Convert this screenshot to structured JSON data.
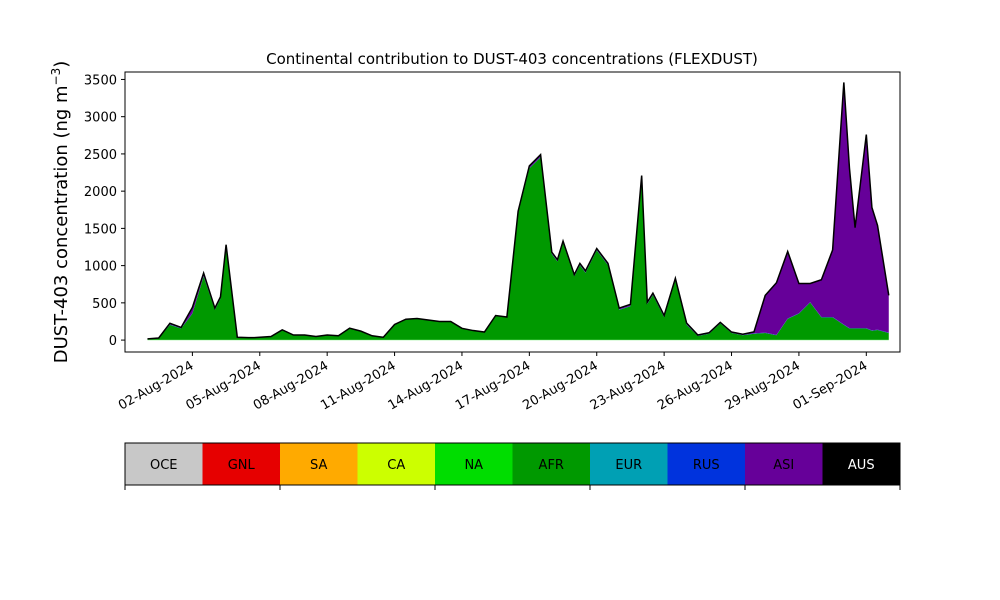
{
  "chart_data": {
    "type": "area",
    "stacked": true,
    "title": "Continental contribution to DUST-403 concentrations (FLEXDUST)",
    "ylabel_main": "DUST-403 concentration (ng m",
    "ylabel_exp": "−3",
    "ylabel_close": ")",
    "xlabel": "",
    "ylim": [
      -160,
      3600
    ],
    "yticks": [
      0,
      500,
      1000,
      1500,
      2000,
      2500,
      3000,
      3500
    ],
    "xrange": [
      "2024-07-30T00:00",
      "2024-09-02T12:00"
    ],
    "xticks": [
      "2024-08-02",
      "2024-08-05",
      "2024-08-08",
      "2024-08-11",
      "2024-08-14",
      "2024-08-17",
      "2024-08-20",
      "2024-08-23",
      "2024-08-26",
      "2024-08-29",
      "2024-09-01"
    ],
    "xtick_labels": [
      "02-Aug-2024",
      "05-Aug-2024",
      "08-Aug-2024",
      "11-Aug-2024",
      "14-Aug-2024",
      "17-Aug-2024",
      "20-Aug-2024",
      "23-Aug-2024",
      "26-Aug-2024",
      "29-Aug-2024",
      "01-Sep-2024"
    ],
    "x": [
      "2024-07-31T00:00",
      "2024-07-31T12:00",
      "2024-08-01T00:00",
      "2024-08-01T12:00",
      "2024-08-02T00:00",
      "2024-08-02T12:00",
      "2024-08-03T00:00",
      "2024-08-03T06:00",
      "2024-08-03T12:00",
      "2024-08-04T00:00",
      "2024-08-04T12:00",
      "2024-08-04T18:00",
      "2024-08-05T00:00",
      "2024-08-05T12:00",
      "2024-08-06T00:00",
      "2024-08-06T12:00",
      "2024-08-07T00:00",
      "2024-08-07T12:00",
      "2024-08-08T00:00",
      "2024-08-08T12:00",
      "2024-08-09T00:00",
      "2024-08-09T12:00",
      "2024-08-10T00:00",
      "2024-08-10T12:00",
      "2024-08-11T00:00",
      "2024-08-11T12:00",
      "2024-08-12T00:00",
      "2024-08-12T12:00",
      "2024-08-13T00:00",
      "2024-08-13T12:00",
      "2024-08-14T00:00",
      "2024-08-14T12:00",
      "2024-08-15T00:00",
      "2024-08-15T12:00",
      "2024-08-16T00:00",
      "2024-08-16T12:00",
      "2024-08-17T00:00",
      "2024-08-17T12:00",
      "2024-08-18T00:00",
      "2024-08-18T06:00",
      "2024-08-18T12:00",
      "2024-08-19T00:00",
      "2024-08-19T06:00",
      "2024-08-19T12:00",
      "2024-08-20T00:00",
      "2024-08-20T12:00",
      "2024-08-21T00:00",
      "2024-08-21T12:00",
      "2024-08-22T00:00",
      "2024-08-22T06:00",
      "2024-08-22T12:00",
      "2024-08-23T00:00",
      "2024-08-23T12:00",
      "2024-08-24T00:00",
      "2024-08-24T12:00",
      "2024-08-25T00:00",
      "2024-08-25T12:00",
      "2024-08-26T00:00",
      "2024-08-26T12:00",
      "2024-08-27T00:00",
      "2024-08-27T12:00",
      "2024-08-28T00:00",
      "2024-08-28T12:00",
      "2024-08-29T00:00",
      "2024-08-29T12:00",
      "2024-08-30T00:00",
      "2024-08-30T12:00",
      "2024-08-31T00:00",
      "2024-08-31T06:00",
      "2024-08-31T12:00",
      "2024-09-01T00:00",
      "2024-09-01T06:00",
      "2024-09-01T12:00",
      "2024-09-02T00:00"
    ],
    "series": [
      {
        "name": "OCE",
        "color": "#c8c8c8",
        "values": [
          0,
          0,
          0,
          0,
          0,
          0,
          0,
          0,
          0,
          0,
          0,
          0,
          0,
          0,
          0,
          0,
          0,
          0,
          0,
          0,
          0,
          0,
          0,
          0,
          0,
          0,
          0,
          0,
          0,
          0,
          0,
          0,
          0,
          0,
          0,
          0,
          0,
          0,
          0,
          0,
          0,
          0,
          0,
          0,
          0,
          0,
          0,
          0,
          0,
          0,
          0,
          0,
          0,
          0,
          0,
          0,
          0,
          0,
          0,
          0,
          0,
          0,
          0,
          0,
          0,
          0,
          0,
          0,
          0,
          0,
          0,
          0,
          0,
          0
        ]
      },
      {
        "name": "GNL",
        "color": "#e60000",
        "values": [
          0,
          0,
          0,
          0,
          0,
          0,
          0,
          0,
          0,
          0,
          0,
          0,
          0,
          0,
          0,
          0,
          0,
          0,
          0,
          0,
          0,
          0,
          0,
          0,
          0,
          0,
          0,
          0,
          0,
          0,
          0,
          0,
          0,
          0,
          0,
          0,
          0,
          0,
          0,
          0,
          0,
          0,
          0,
          0,
          0,
          0,
          0,
          0,
          0,
          0,
          0,
          0,
          0,
          0,
          0,
          0,
          0,
          0,
          0,
          0,
          0,
          0,
          0,
          0,
          0,
          0,
          0,
          0,
          0,
          0,
          0,
          0,
          0,
          0
        ]
      },
      {
        "name": "SA",
        "color": "#ffaa00",
        "values": [
          0,
          0,
          0,
          0,
          0,
          0,
          0,
          0,
          0,
          0,
          0,
          0,
          0,
          0,
          0,
          0,
          0,
          0,
          0,
          0,
          0,
          0,
          0,
          0,
          0,
          0,
          0,
          0,
          0,
          0,
          0,
          0,
          0,
          0,
          0,
          0,
          0,
          0,
          0,
          0,
          0,
          0,
          0,
          0,
          0,
          0,
          0,
          0,
          0,
          0,
          0,
          0,
          0,
          0,
          0,
          0,
          0,
          0,
          0,
          0,
          0,
          0,
          0,
          0,
          0,
          0,
          0,
          0,
          0,
          0,
          0,
          0,
          0,
          0
        ]
      },
      {
        "name": "CA",
        "color": "#ccff00",
        "values": [
          0,
          0,
          0,
          0,
          0,
          0,
          0,
          0,
          0,
          0,
          0,
          0,
          0,
          0,
          0,
          0,
          0,
          0,
          0,
          0,
          0,
          0,
          0,
          0,
          0,
          0,
          0,
          0,
          0,
          0,
          0,
          0,
          0,
          0,
          0,
          0,
          0,
          0,
          0,
          0,
          0,
          0,
          0,
          0,
          0,
          0,
          0,
          0,
          0,
          0,
          0,
          0,
          0,
          0,
          0,
          0,
          0,
          0,
          0,
          0,
          0,
          0,
          0,
          0,
          0,
          0,
          0,
          0,
          0,
          0,
          0,
          0,
          0,
          0
        ]
      },
      {
        "name": "NA",
        "color": "#00dd00",
        "values": [
          5,
          5,
          5,
          5,
          5,
          5,
          5,
          5,
          5,
          5,
          5,
          5,
          5,
          5,
          5,
          5,
          5,
          5,
          5,
          5,
          5,
          5,
          5,
          5,
          5,
          5,
          5,
          5,
          5,
          5,
          5,
          5,
          5,
          5,
          5,
          5,
          5,
          5,
          5,
          5,
          5,
          5,
          5,
          5,
          5,
          5,
          5,
          5,
          5,
          5,
          5,
          5,
          5,
          5,
          5,
          5,
          5,
          5,
          5,
          5,
          5,
          5,
          5,
          5,
          5,
          5,
          5,
          5,
          5,
          5,
          5,
          5,
          5,
          5
        ]
      },
      {
        "name": "AFR",
        "color": "#009900",
        "values": [
          10,
          20,
          200,
          150,
          350,
          850,
          400,
          550,
          1250,
          30,
          25,
          25,
          30,
          40,
          130,
          60,
          60,
          40,
          60,
          50,
          150,
          110,
          50,
          30,
          200,
          270,
          280,
          260,
          240,
          240,
          150,
          120,
          100,
          320,
          300,
          1700,
          2300,
          2450,
          1150,
          1050,
          1300,
          850,
          1000,
          900,
          1200,
          1000,
          400,
          450,
          2180,
          480,
          600,
          300,
          800,
          200,
          50,
          80,
          220,
          90,
          60,
          80,
          90,
          60,
          280,
          350,
          500,
          300,
          300,
          200,
          150,
          150,
          150,
          120,
          130,
          90
        ]
      },
      {
        "name": "EUR",
        "color": "#00a0b4",
        "values": [
          0,
          0,
          0,
          0,
          0,
          0,
          0,
          0,
          0,
          0,
          0,
          0,
          0,
          0,
          0,
          0,
          0,
          0,
          0,
          0,
          0,
          0,
          0,
          0,
          0,
          0,
          0,
          0,
          0,
          0,
          0,
          0,
          0,
          0,
          0,
          0,
          0,
          0,
          0,
          0,
          0,
          0,
          0,
          0,
          0,
          0,
          0,
          0,
          0,
          0,
          0,
          0,
          0,
          0,
          0,
          0,
          0,
          0,
          0,
          0,
          0,
          0,
          0,
          0,
          0,
          0,
          0,
          0,
          0,
          0,
          0,
          0,
          0,
          0
        ]
      },
      {
        "name": "RUS",
        "color": "#0033dd",
        "values": [
          2,
          3,
          5,
          5,
          5,
          5,
          5,
          5,
          5,
          3,
          3,
          3,
          3,
          3,
          3,
          3,
          3,
          3,
          3,
          3,
          5,
          5,
          3,
          3,
          5,
          5,
          5,
          5,
          5,
          5,
          3,
          3,
          3,
          5,
          5,
          5,
          5,
          5,
          5,
          5,
          5,
          5,
          5,
          5,
          5,
          5,
          5,
          5,
          5,
          5,
          5,
          5,
          5,
          5,
          3,
          3,
          3,
          3,
          3,
          5,
          5,
          5,
          5,
          5,
          5,
          5,
          5,
          5,
          5,
          5,
          5,
          5,
          5,
          5
        ]
      },
      {
        "name": "ASI",
        "color": "#660099",
        "values": [
          0,
          0,
          15,
          10,
          80,
          40,
          20,
          20,
          20,
          0,
          0,
          0,
          0,
          0,
          0,
          0,
          0,
          0,
          0,
          0,
          0,
          0,
          0,
          0,
          0,
          0,
          0,
          0,
          0,
          0,
          0,
          0,
          0,
          0,
          0,
          20,
          30,
          30,
          20,
          20,
          20,
          20,
          20,
          20,
          20,
          20,
          20,
          20,
          20,
          20,
          20,
          20,
          20,
          20,
          10,
          10,
          10,
          10,
          10,
          20,
          500,
          700,
          900,
          400,
          250,
          500,
          900,
          3250,
          2150,
          1350,
          2600,
          1650,
          1400,
          500
        ]
      },
      {
        "name": "AUS",
        "color": "#000000",
        "values": [
          0,
          0,
          0,
          0,
          0,
          0,
          0,
          0,
          0,
          0,
          0,
          0,
          0,
          0,
          0,
          0,
          0,
          0,
          0,
          0,
          0,
          0,
          0,
          0,
          0,
          0,
          0,
          0,
          0,
          0,
          0,
          0,
          0,
          0,
          0,
          0,
          0,
          0,
          0,
          0,
          0,
          0,
          0,
          0,
          0,
          0,
          0,
          0,
          0,
          0,
          0,
          0,
          0,
          0,
          0,
          0,
          0,
          0,
          0,
          0,
          0,
          0,
          0,
          0,
          0,
          0,
          0,
          0,
          0,
          0,
          0,
          0,
          0,
          0
        ]
      }
    ],
    "legend_placement": "bottom-colorbar"
  }
}
